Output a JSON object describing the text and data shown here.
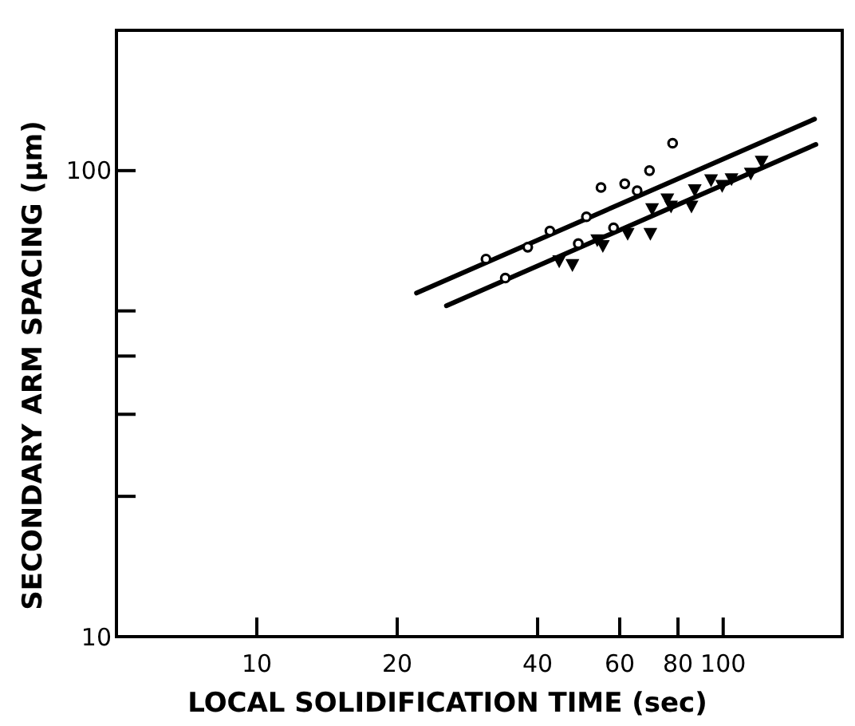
{
  "chart_data": {
    "type": "scatter",
    "xlabel": "LOCAL SOLIDIFICATION TIME (sec)",
    "ylabel": "SECONDARY ARM SPACING (µm)",
    "log": "xy",
    "grid": false,
    "xlim": [
      5,
      180
    ],
    "ylim": [
      10,
      200
    ],
    "xticks": [
      10,
      20,
      40,
      60,
      80,
      100
    ],
    "yticks": [
      10,
      {
        "value": 20,
        "label": null
      },
      {
        "value": 30,
        "label": null
      },
      {
        "value": 40,
        "label": null
      },
      {
        "value": 50,
        "label": null
      },
      100
    ],
    "series": [
      {
        "marker": "circle",
        "color": "#000000",
        "x": [
          31.0,
          34.1,
          38.1,
          42.5,
          48.9,
          50.9,
          54.7,
          58.2,
          61.5,
          65.4,
          69.5,
          77.9
        ],
        "values": [
          64.6,
          58.8,
          68.5,
          74.2,
          69.7,
          79.6,
          92.0,
          75.4,
          93.7,
          90.5,
          100,
          114.5
        ]
      },
      {
        "marker": "triangle",
        "color": "#000000",
        "x": [
          44.5,
          47.5,
          53.7,
          55.2,
          62.4,
          69.8,
          70.4,
          75.9,
          77.3,
          85.5,
          86.9,
          94.2,
          99.5,
          104.2,
          114.6,
          120.9
        ],
        "values": [
          64.0,
          62.8,
          71.0,
          69.0,
          73.3,
          73.3,
          82.8,
          86.9,
          83.9,
          83.9,
          90.9,
          95.5,
          92.9,
          96.0,
          98.7,
          104.7
        ]
      },
      {
        "type": "line",
        "color": "#000000",
        "x": [
          22.0,
          157
        ],
        "values": [
          54.6,
          129
        ]
      },
      {
        "type": "line",
        "color": "#000000",
        "x": [
          25.5,
          158
        ],
        "values": [
          51.3,
          113.8
        ]
      }
    ]
  }
}
